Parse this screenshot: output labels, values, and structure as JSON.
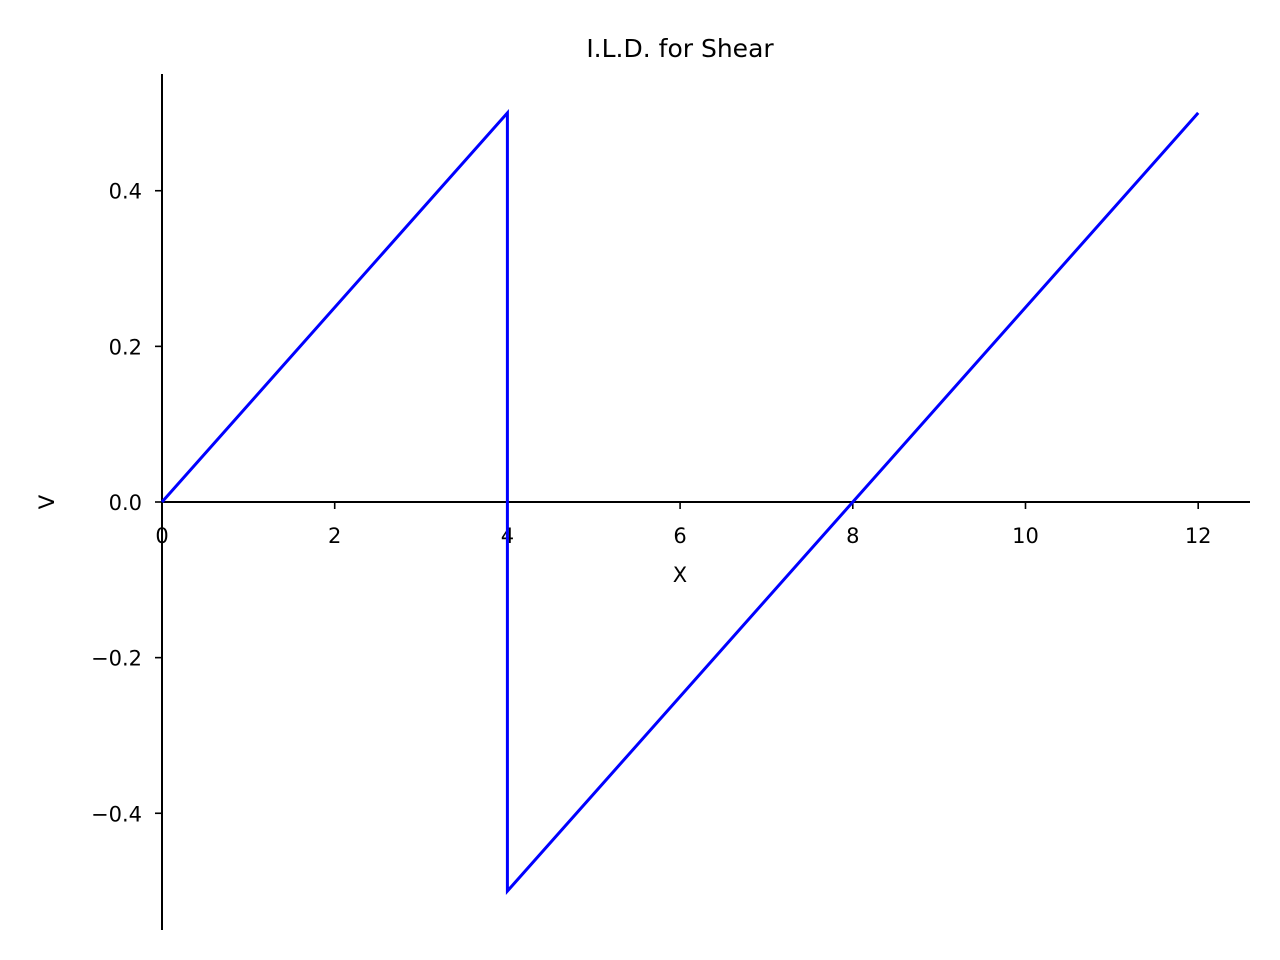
{
  "chart_data": {
    "type": "line",
    "title": "I.L.D. for Shear",
    "xlabel": "X",
    "ylabel": "V",
    "xlim": [
      0,
      12.6
    ],
    "ylim": [
      -0.55,
      0.55
    ],
    "x_ticks": [
      0,
      2,
      4,
      6,
      8,
      10,
      12
    ],
    "x_tick_labels": [
      "0",
      "2",
      "4",
      "6",
      "8",
      "10",
      "12"
    ],
    "y_ticks": [
      -0.4,
      -0.2,
      0.0,
      0.2,
      0.4
    ],
    "y_tick_labels": [
      "−0.4",
      "−0.2",
      "0.0",
      "0.2",
      "0.4"
    ],
    "grid": false,
    "series": [
      {
        "color": "#0000ff",
        "x": [
          0,
          4,
          4,
          8,
          12
        ],
        "y": [
          0,
          0.5,
          -0.5,
          0,
          0.5
        ]
      }
    ]
  }
}
